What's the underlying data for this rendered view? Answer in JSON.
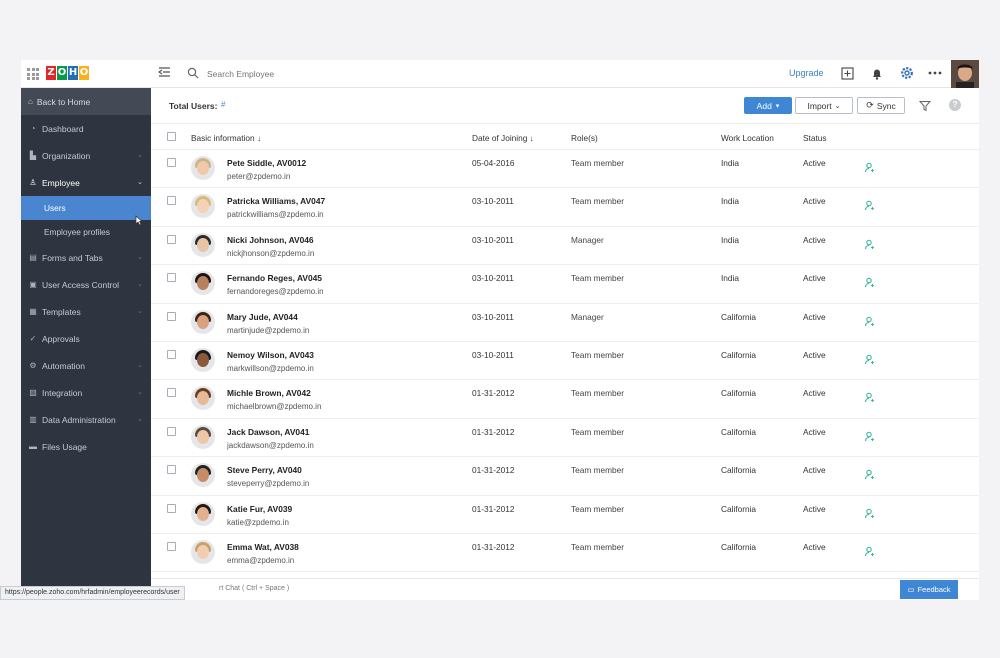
{
  "topbar": {
    "logo_letters": [
      "Z",
      "O",
      "H",
      "O"
    ],
    "logo_colors": [
      "#e42527",
      "#089949",
      "#226db4",
      "#f9b21d"
    ],
    "search_placeholder": "Search Employee",
    "upgrade_label": "Upgrade",
    "icons": [
      "grid-icon",
      "collapse-sidebar-icon",
      "search-icon",
      "add-square-icon",
      "bell-icon",
      "gear-icon",
      "more-icon"
    ]
  },
  "sidebar": {
    "back_label": "Back to Home",
    "items": [
      {
        "label": "Dashboard",
        "icon": "dashboard-icon"
      },
      {
        "label": "Organization",
        "icon": "organization-icon"
      },
      {
        "label": "Employee",
        "icon": "person-icon"
      },
      {
        "label": "Forms and Tabs",
        "icon": "forms-icon"
      },
      {
        "label": "User Access Control",
        "icon": "access-control-icon"
      },
      {
        "label": "Templates",
        "icon": "templates-icon"
      },
      {
        "label": "Approvals",
        "icon": "approvals-icon"
      },
      {
        "label": "Automation",
        "icon": "automation-icon"
      },
      {
        "label": "Integration",
        "icon": "integration-icon"
      },
      {
        "label": "Data Administration",
        "icon": "data-admin-icon"
      },
      {
        "label": "Files Usage",
        "icon": "files-icon"
      }
    ],
    "sub_items": [
      {
        "label": "Users",
        "active": true
      },
      {
        "label": "Employee profiles",
        "active": false
      }
    ]
  },
  "toolbar": {
    "total_users_label": "Total Users:",
    "total_users_value": "#",
    "add_label": "Add",
    "import_label": "Import",
    "sync_label": "Sync"
  },
  "table": {
    "headers": {
      "basic": "Basic information",
      "doj": "Date of Joining",
      "roles": "Role(s)",
      "location": "Work Location",
      "status": "Status"
    },
    "rows": [
      {
        "name": "Pete Siddle, AV0012",
        "email": "peter@zpdemo.in",
        "doj": "05-04-2016",
        "role": "Team member",
        "location": "India",
        "status": "Active"
      },
      {
        "name": "Patricka Williams, AV047",
        "email": "patrickwilliams@zpdemo.in",
        "doj": "03-10-2011",
        "role": "Team member",
        "location": "India",
        "status": "Active"
      },
      {
        "name": "Nicki Johnson, AV046",
        "email": "nickjhonson@zpdemo.in",
        "doj": "03-10-2011",
        "role": "Manager",
        "location": "India",
        "status": "Active"
      },
      {
        "name": "Fernando Reges, AV045",
        "email": "fernandoreges@zpdemo.in",
        "doj": "03-10-2011",
        "role": "Team member",
        "location": "India",
        "status": "Active"
      },
      {
        "name": "Mary Jude, AV044",
        "email": "martinjude@zpdemo.in",
        "doj": "03-10-2011",
        "role": "Manager",
        "location": "California",
        "status": "Active"
      },
      {
        "name": "Nemoy Wilson, AV043",
        "email": "markwillson@zpdemo.in",
        "doj": "03-10-2011",
        "role": "Team member",
        "location": "California",
        "status": "Active"
      },
      {
        "name": "Michle Brown, AV042",
        "email": "michaelbrown@zpdemo.in",
        "doj": "01-31-2012",
        "role": "Team member",
        "location": "California",
        "status": "Active"
      },
      {
        "name": "Jack Dawson, AV041",
        "email": "jackdawson@zpdemo.in",
        "doj": "01-31-2012",
        "role": "Team member",
        "location": "California",
        "status": "Active"
      },
      {
        "name": "Steve Perry, AV040",
        "email": "steveperry@zpdemo.in",
        "doj": "01-31-2012",
        "role": "Team member",
        "location": "California",
        "status": "Active"
      },
      {
        "name": "Katie Fur, AV039",
        "email": "katie@zpdemo.in",
        "doj": "01-31-2012",
        "role": "Team member",
        "location": "California",
        "status": "Active"
      },
      {
        "name": "Emma Wat, AV038",
        "email": "emma@zpdemo.in",
        "doj": "01-31-2012",
        "role": "Team member",
        "location": "California",
        "status": "Active"
      }
    ]
  },
  "bottom": {
    "chat_hint": "rt Chat ( Ctrl + Space )",
    "url_tooltip": "https://people.zoho.com/hrfadmin/employeerecords/user",
    "feedback_label": "Feedback"
  },
  "colors": {
    "sidebar_bg": "#2e3440",
    "active_blue": "#4a86d0",
    "action_icon": "#3fb8a0"
  }
}
